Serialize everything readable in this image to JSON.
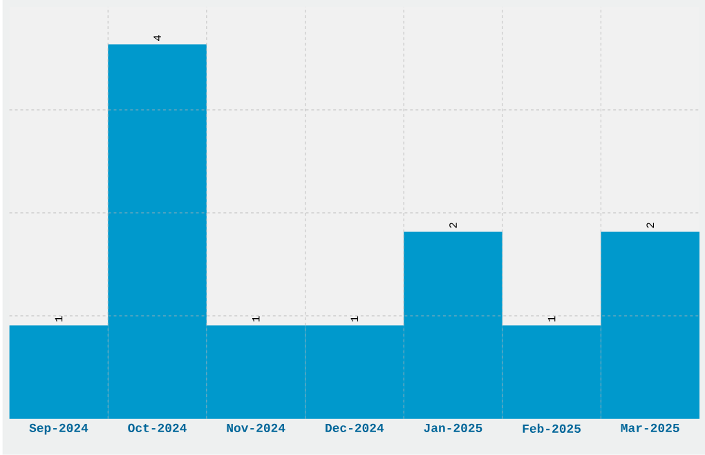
{
  "chart_data": {
    "type": "bar",
    "categories": [
      "Sep-2024",
      "Oct-2024",
      "Nov-2024",
      "Dec-2024",
      "Jan-2025",
      "Feb-2025",
      "Mar-2025"
    ],
    "values": [
      1,
      4,
      1,
      1,
      2,
      1,
      2
    ],
    "color": "#0099cc",
    "ylim": [
      0,
      4.4
    ],
    "yticks": [
      {
        "value": 1.1,
        "label": null
      },
      {
        "value": 2.2,
        "label": null
      },
      {
        "value": 3.3,
        "label": null
      }
    ],
    "tick_labels": "x",
    "grid": true,
    "data_labels": true
  }
}
